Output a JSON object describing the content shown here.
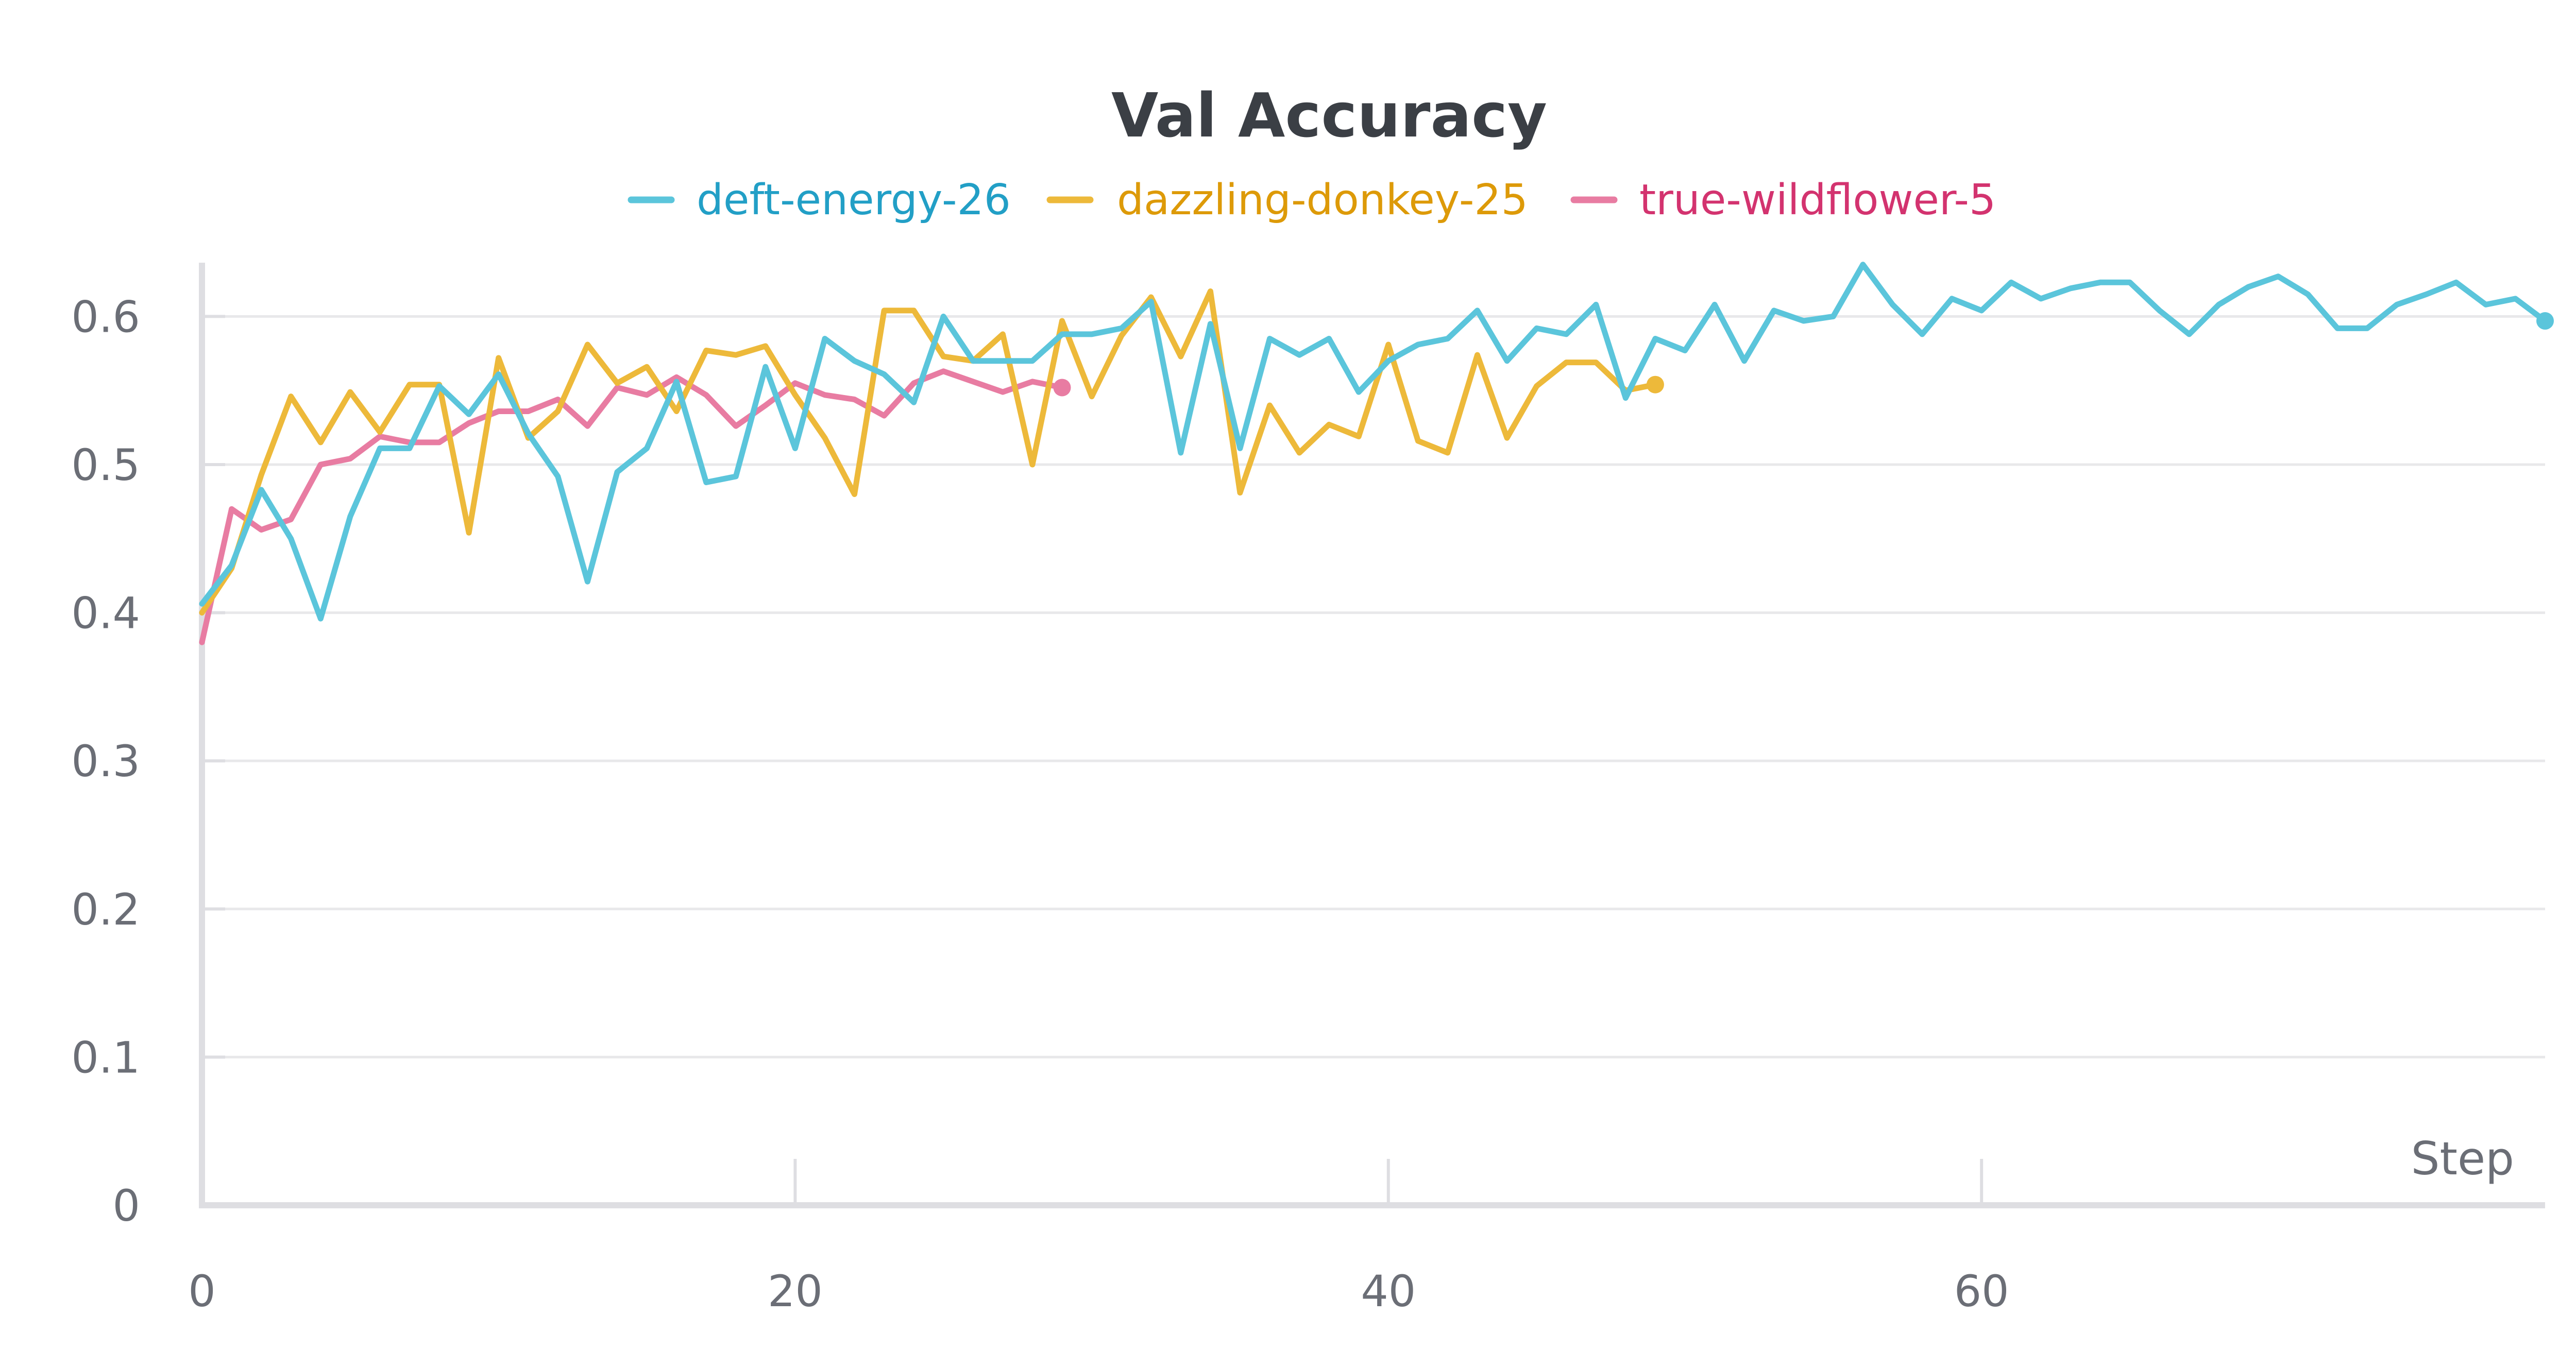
{
  "chart_data": {
    "type": "line",
    "title": "Val Accuracy",
    "xlabel": "Step",
    "ylabel": "",
    "xlim": [
      0,
      79
    ],
    "ylim": [
      0,
      0.65
    ],
    "x_ticks": [
      0,
      20,
      40,
      60
    ],
    "y_ticks": [
      0,
      0.1,
      0.2,
      0.3,
      0.4,
      0.5,
      0.6
    ],
    "x_tick_labels": [
      "0",
      "20",
      "40",
      "60"
    ],
    "y_tick_labels": [
      "0",
      "0.1",
      "0.2",
      "0.3",
      "0.4",
      "0.5",
      "0.6"
    ],
    "grid": true,
    "legend_position": "top-center",
    "series": [
      {
        "name": "true-wildflower-5",
        "color": "#e87ca2",
        "label_color": "#d3336f",
        "x": [
          0,
          1,
          2,
          3,
          4,
          5,
          6,
          7,
          8,
          9,
          10,
          11,
          12,
          13,
          14,
          15,
          16,
          17,
          18,
          19,
          20,
          21,
          22,
          23,
          24,
          25,
          26,
          27,
          28,
          29
        ],
        "values": [
          0.38,
          0.47,
          0.456,
          0.463,
          0.5,
          0.504,
          0.519,
          0.515,
          0.515,
          0.528,
          0.536,
          0.536,
          0.544,
          0.526,
          0.552,
          0.547,
          0.559,
          0.547,
          0.526,
          0.54,
          0.555,
          0.547,
          0.544,
          0.533,
          0.555,
          0.563,
          0.556,
          0.549,
          0.556,
          0.552
        ]
      },
      {
        "name": "dazzling-donkey-25",
        "color": "#edb93a",
        "label_color": "#dd9a08",
        "x": [
          0,
          1,
          2,
          3,
          4,
          5,
          6,
          7,
          8,
          9,
          10,
          11,
          12,
          13,
          14,
          15,
          16,
          17,
          18,
          19,
          20,
          21,
          22,
          23,
          24,
          25,
          26,
          27,
          28,
          29,
          30,
          31,
          32,
          33,
          34,
          35,
          36,
          37,
          38,
          39,
          40,
          41,
          42,
          43,
          44,
          45,
          46,
          47,
          48,
          49
        ],
        "values": [
          0.4,
          0.43,
          0.493,
          0.546,
          0.515,
          0.549,
          0.522,
          0.554,
          0.554,
          0.454,
          0.572,
          0.518,
          0.536,
          0.581,
          0.555,
          0.566,
          0.536,
          0.577,
          0.574,
          0.58,
          0.547,
          0.518,
          0.48,
          0.604,
          0.604,
          0.573,
          0.57,
          0.588,
          0.5,
          0.597,
          0.546,
          0.587,
          0.613,
          0.573,
          0.617,
          0.481,
          0.54,
          0.508,
          0.527,
          0.519,
          0.581,
          0.516,
          0.508,
          0.574,
          0.518,
          0.553,
          0.569,
          0.569,
          0.55,
          0.554
        ]
      },
      {
        "name": "deft-energy-26",
        "color": "#5bc5db",
        "label_color": "#229fc6",
        "x": [
          0,
          1,
          2,
          3,
          4,
          5,
          6,
          7,
          8,
          9,
          10,
          11,
          12,
          13,
          14,
          15,
          16,
          17,
          18,
          19,
          20,
          21,
          22,
          23,
          24,
          25,
          26,
          27,
          28,
          29,
          30,
          31,
          32,
          33,
          34,
          35,
          36,
          37,
          38,
          39,
          40,
          41,
          42,
          43,
          44,
          45,
          46,
          47,
          48,
          49,
          50,
          51,
          52,
          53,
          54,
          55,
          56,
          57,
          58,
          59,
          60,
          61,
          62,
          63,
          64,
          65,
          66,
          67,
          68,
          69,
          70,
          71,
          72,
          73,
          74,
          75,
          76,
          77,
          78,
          79
        ],
        "values": [
          0.406,
          0.432,
          0.483,
          0.45,
          0.396,
          0.465,
          0.511,
          0.511,
          0.553,
          0.534,
          0.561,
          0.521,
          0.492,
          0.421,
          0.495,
          0.511,
          0.556,
          0.488,
          0.492,
          0.566,
          0.511,
          0.585,
          0.57,
          0.561,
          0.542,
          0.6,
          0.57,
          0.57,
          0.57,
          0.588,
          0.588,
          0.592,
          0.61,
          0.508,
          0.595,
          0.511,
          0.585,
          0.574,
          0.585,
          0.549,
          0.57,
          0.581,
          0.585,
          0.604,
          0.57,
          0.592,
          0.588,
          0.608,
          0.545,
          0.585,
          0.577,
          0.608,
          0.57,
          0.604,
          0.597,
          0.6,
          0.635,
          0.608,
          0.588,
          0.612,
          0.604,
          0.623,
          0.612,
          0.619,
          0.623,
          0.623,
          0.604,
          0.588,
          0.608,
          0.62,
          0.627,
          0.615,
          0.592,
          0.592,
          0.608,
          0.615,
          0.623,
          0.608,
          0.612,
          0.597
        ]
      }
    ]
  },
  "legend": {
    "items": [
      {
        "name": "deft-energy-26",
        "color": "#5bc5db",
        "label_color": "#229fc6"
      },
      {
        "name": "dazzling-donkey-25",
        "color": "#edb93a",
        "label_color": "#dd9a08"
      },
      {
        "name": "true-wildflower-5",
        "color": "#e87ca2",
        "label_color": "#d3336f"
      }
    ]
  }
}
